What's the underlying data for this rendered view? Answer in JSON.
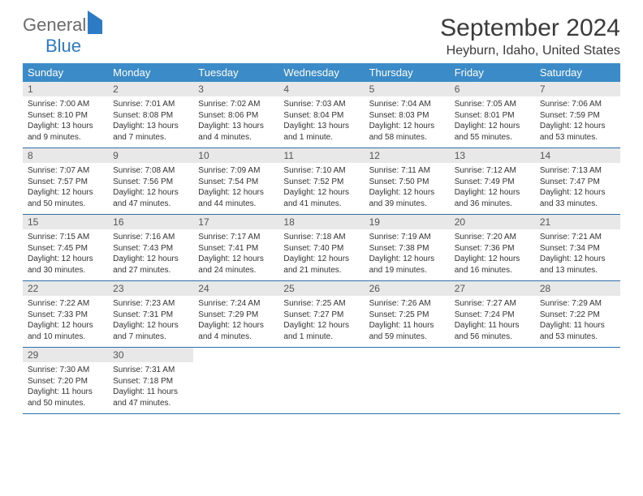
{
  "brand": {
    "part1": "General",
    "part2": "Blue"
  },
  "title": "September 2024",
  "location": "Heyburn, Idaho, United States",
  "colors": {
    "header_bg": "#3b8bc9",
    "header_text": "#ffffff",
    "daynum_bg": "#e8e8e8",
    "border": "#2d6fa8",
    "brand_blue": "#2d7bc4",
    "brand_gray": "#6b6b6b",
    "body_text": "#333333"
  },
  "weekdays": [
    "Sunday",
    "Monday",
    "Tuesday",
    "Wednesday",
    "Thursday",
    "Friday",
    "Saturday"
  ],
  "weeks": [
    [
      {
        "n": "1",
        "sr": "Sunrise: 7:00 AM",
        "ss": "Sunset: 8:10 PM",
        "dl": "Daylight: 13 hours and 9 minutes."
      },
      {
        "n": "2",
        "sr": "Sunrise: 7:01 AM",
        "ss": "Sunset: 8:08 PM",
        "dl": "Daylight: 13 hours and 7 minutes."
      },
      {
        "n": "3",
        "sr": "Sunrise: 7:02 AM",
        "ss": "Sunset: 8:06 PM",
        "dl": "Daylight: 13 hours and 4 minutes."
      },
      {
        "n": "4",
        "sr": "Sunrise: 7:03 AM",
        "ss": "Sunset: 8:04 PM",
        "dl": "Daylight: 13 hours and 1 minute."
      },
      {
        "n": "5",
        "sr": "Sunrise: 7:04 AM",
        "ss": "Sunset: 8:03 PM",
        "dl": "Daylight: 12 hours and 58 minutes."
      },
      {
        "n": "6",
        "sr": "Sunrise: 7:05 AM",
        "ss": "Sunset: 8:01 PM",
        "dl": "Daylight: 12 hours and 55 minutes."
      },
      {
        "n": "7",
        "sr": "Sunrise: 7:06 AM",
        "ss": "Sunset: 7:59 PM",
        "dl": "Daylight: 12 hours and 53 minutes."
      }
    ],
    [
      {
        "n": "8",
        "sr": "Sunrise: 7:07 AM",
        "ss": "Sunset: 7:57 PM",
        "dl": "Daylight: 12 hours and 50 minutes."
      },
      {
        "n": "9",
        "sr": "Sunrise: 7:08 AM",
        "ss": "Sunset: 7:56 PM",
        "dl": "Daylight: 12 hours and 47 minutes."
      },
      {
        "n": "10",
        "sr": "Sunrise: 7:09 AM",
        "ss": "Sunset: 7:54 PM",
        "dl": "Daylight: 12 hours and 44 minutes."
      },
      {
        "n": "11",
        "sr": "Sunrise: 7:10 AM",
        "ss": "Sunset: 7:52 PM",
        "dl": "Daylight: 12 hours and 41 minutes."
      },
      {
        "n": "12",
        "sr": "Sunrise: 7:11 AM",
        "ss": "Sunset: 7:50 PM",
        "dl": "Daylight: 12 hours and 39 minutes."
      },
      {
        "n": "13",
        "sr": "Sunrise: 7:12 AM",
        "ss": "Sunset: 7:49 PM",
        "dl": "Daylight: 12 hours and 36 minutes."
      },
      {
        "n": "14",
        "sr": "Sunrise: 7:13 AM",
        "ss": "Sunset: 7:47 PM",
        "dl": "Daylight: 12 hours and 33 minutes."
      }
    ],
    [
      {
        "n": "15",
        "sr": "Sunrise: 7:15 AM",
        "ss": "Sunset: 7:45 PM",
        "dl": "Daylight: 12 hours and 30 minutes."
      },
      {
        "n": "16",
        "sr": "Sunrise: 7:16 AM",
        "ss": "Sunset: 7:43 PM",
        "dl": "Daylight: 12 hours and 27 minutes."
      },
      {
        "n": "17",
        "sr": "Sunrise: 7:17 AM",
        "ss": "Sunset: 7:41 PM",
        "dl": "Daylight: 12 hours and 24 minutes."
      },
      {
        "n": "18",
        "sr": "Sunrise: 7:18 AM",
        "ss": "Sunset: 7:40 PM",
        "dl": "Daylight: 12 hours and 21 minutes."
      },
      {
        "n": "19",
        "sr": "Sunrise: 7:19 AM",
        "ss": "Sunset: 7:38 PM",
        "dl": "Daylight: 12 hours and 19 minutes."
      },
      {
        "n": "20",
        "sr": "Sunrise: 7:20 AM",
        "ss": "Sunset: 7:36 PM",
        "dl": "Daylight: 12 hours and 16 minutes."
      },
      {
        "n": "21",
        "sr": "Sunrise: 7:21 AM",
        "ss": "Sunset: 7:34 PM",
        "dl": "Daylight: 12 hours and 13 minutes."
      }
    ],
    [
      {
        "n": "22",
        "sr": "Sunrise: 7:22 AM",
        "ss": "Sunset: 7:33 PM",
        "dl": "Daylight: 12 hours and 10 minutes."
      },
      {
        "n": "23",
        "sr": "Sunrise: 7:23 AM",
        "ss": "Sunset: 7:31 PM",
        "dl": "Daylight: 12 hours and 7 minutes."
      },
      {
        "n": "24",
        "sr": "Sunrise: 7:24 AM",
        "ss": "Sunset: 7:29 PM",
        "dl": "Daylight: 12 hours and 4 minutes."
      },
      {
        "n": "25",
        "sr": "Sunrise: 7:25 AM",
        "ss": "Sunset: 7:27 PM",
        "dl": "Daylight: 12 hours and 1 minute."
      },
      {
        "n": "26",
        "sr": "Sunrise: 7:26 AM",
        "ss": "Sunset: 7:25 PM",
        "dl": "Daylight: 11 hours and 59 minutes."
      },
      {
        "n": "27",
        "sr": "Sunrise: 7:27 AM",
        "ss": "Sunset: 7:24 PM",
        "dl": "Daylight: 11 hours and 56 minutes."
      },
      {
        "n": "28",
        "sr": "Sunrise: 7:29 AM",
        "ss": "Sunset: 7:22 PM",
        "dl": "Daylight: 11 hours and 53 minutes."
      }
    ],
    [
      {
        "n": "29",
        "sr": "Sunrise: 7:30 AM",
        "ss": "Sunset: 7:20 PM",
        "dl": "Daylight: 11 hours and 50 minutes."
      },
      {
        "n": "30",
        "sr": "Sunrise: 7:31 AM",
        "ss": "Sunset: 7:18 PM",
        "dl": "Daylight: 11 hours and 47 minutes."
      },
      null,
      null,
      null,
      null,
      null
    ]
  ]
}
